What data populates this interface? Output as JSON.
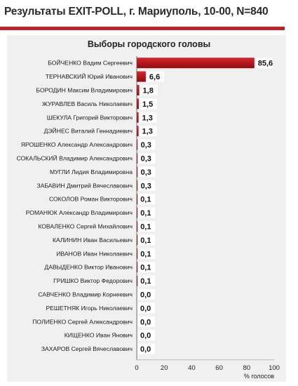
{
  "header": {
    "title": "Результаты EXIT-POLL, г. Мариуполь, 10-00, N=840"
  },
  "colors": {
    "accent": "#c41f24",
    "bar": "#b5161c",
    "panel": "#f0f0f0"
  },
  "chart_data": {
    "type": "bar",
    "orientation": "horizontal",
    "title": "Выборы городского головы",
    "xlabel": "% голосов",
    "ylabel": "",
    "xlim": [
      0,
      100
    ],
    "xticks": [
      "0",
      "20",
      "40",
      "60",
      "80",
      "100"
    ],
    "grid": false,
    "categories": [
      "БОЙЧЕНКО Вадим Сергеевич",
      "ТЕРНАВСКИЙ Юрий Иванович",
      "БОРОДИН Максим Владимирович",
      "ЖУРАВЛЕВ Василь Николаевич",
      "ШЕКУЛА Григорий Викторович",
      "ДЭЙНЕС Виталий Геннадиевич",
      "ЯРОШЕНКО Александр Александрович",
      "СОКАЛЬСКИЙ Владимир Александрович",
      "МУГЛИ Лидия Владимировна",
      "ЗАБАВИН Дмитрий Вячеславович",
      "СОКОЛОВ Роман Викторович",
      "РОМАНЮК Александр Владимирович",
      "КОВАЛЕНКО Сергей Михайлович",
      "КАЛИНИН Иван Васильевич",
      "ИВАНОВ Иван Николаевич",
      "ДАВЫДЕНКО Виктор Иванович",
      "ГРИШКО Виктор Федорович",
      "САВЧЕНКО Владимир Корнеевич",
      "РЕШЕТНЯК Игорь Николаевич",
      "ПОЛИЕНКО Сергей Александрович",
      "КИЩЕНКО Иван Янович",
      "ЗАХАРОВ Сергей Вячеславович"
    ],
    "values": [
      85.6,
      6.6,
      1.8,
      1.5,
      1.3,
      1.3,
      0.3,
      0.3,
      0.3,
      0.3,
      0.1,
      0.1,
      0.1,
      0.1,
      0.1,
      0.1,
      0.1,
      0.0,
      0.0,
      0.0,
      0.0,
      0.0
    ],
    "value_labels": [
      "85,6",
      "6,6",
      "1,8",
      "1,5",
      "1,3",
      "1,3",
      "0,3",
      "0,3",
      "0,3",
      "0,3",
      "0,1",
      "0,1",
      "0,1",
      "0,1",
      "0,1",
      "0,1",
      "0,1",
      "0,0",
      "0,0",
      "0,0",
      "0,0",
      "0,0"
    ]
  }
}
